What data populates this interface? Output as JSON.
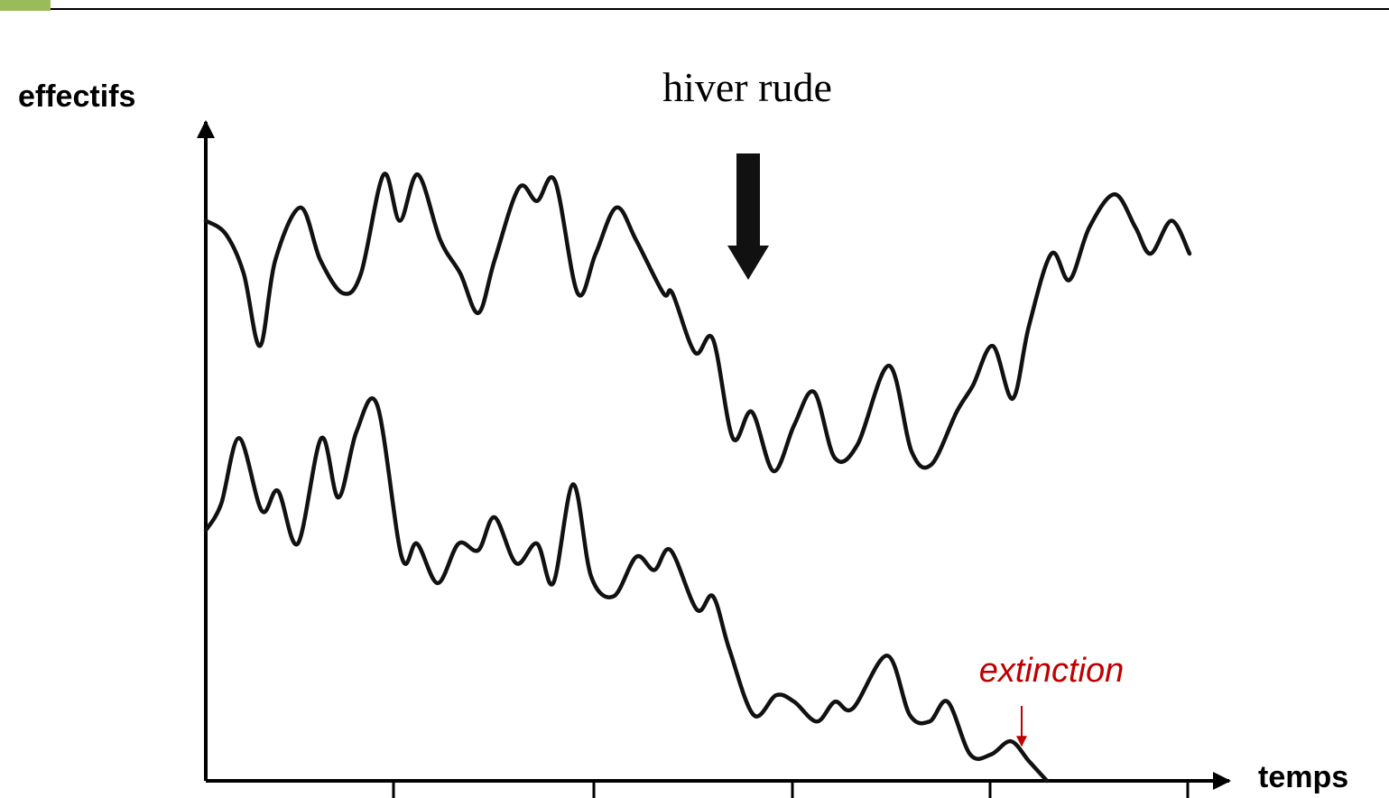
{
  "chart_data": {
    "type": "line",
    "x_label": "temps",
    "y_label": "effectifs",
    "annotations": [
      "hiver rude",
      "extinction"
    ],
    "xlim": [
      0,
      113.2
    ],
    "ylim": [
      0,
      100
    ],
    "series": [
      {
        "color": "#111111",
        "x": [
          0,
          2.2,
          4.2,
          6,
          7.7,
          10.5,
          12.7,
          15.2,
          17.2,
          19.7,
          21.5,
          23.5,
          26,
          28.2,
          30.2,
          32,
          34.7,
          36.7,
          38.7,
          41.2,
          43.2,
          45.5,
          47.7,
          50.7,
          51.7,
          54.2,
          56.2,
          58.4,
          60.5,
          62.9,
          65.2,
          67.4,
          69.7,
          72.2,
          75.7,
          78.2,
          80.4,
          83.2,
          85,
          87.2,
          89.4,
          91.2,
          93.7,
          95.7,
          97.9,
          100.7,
          103,
          104.7,
          107,
          109
        ],
        "values": [
          85,
          83,
          77,
          66,
          79,
          87,
          79,
          74,
          77,
          92,
          85,
          92,
          82,
          77,
          71,
          79,
          90,
          88,
          91,
          74,
          80,
          87,
          82,
          74,
          74,
          65,
          67,
          52,
          56,
          47,
          54,
          59,
          49,
          51,
          63,
          50,
          48,
          56,
          60,
          66,
          58,
          69,
          80,
          76,
          84,
          89,
          84,
          80,
          85,
          80
        ]
      },
      {
        "color": "#111111",
        "x": [
          0,
          1.7,
          3.7,
          6.2,
          8,
          10.2,
          12.8,
          14.7,
          16.7,
          19,
          21.7,
          23.4,
          25.7,
          28,
          30.2,
          32,
          34.4,
          36.7,
          38.5,
          40.7,
          42.7,
          45.2,
          47.7,
          49.7,
          51.5,
          54.4,
          56.2,
          58,
          60.7,
          63.2,
          65.2,
          67.7,
          69.7,
          71.7,
          75.5,
          78,
          80.2,
          82.2,
          84.7,
          87,
          89.2,
          91.2,
          93.2
        ],
        "values": [
          38,
          42,
          52,
          41,
          44,
          36,
          52,
          43,
          53,
          57,
          34,
          36,
          30,
          36,
          35,
          40,
          33,
          36,
          30,
          45,
          31,
          28,
          34,
          32,
          35,
          26,
          28,
          20,
          10,
          13,
          12,
          9,
          12,
          11,
          19,
          10,
          9,
          12,
          4,
          4,
          6,
          3,
          0
        ]
      }
    ]
  }
}
